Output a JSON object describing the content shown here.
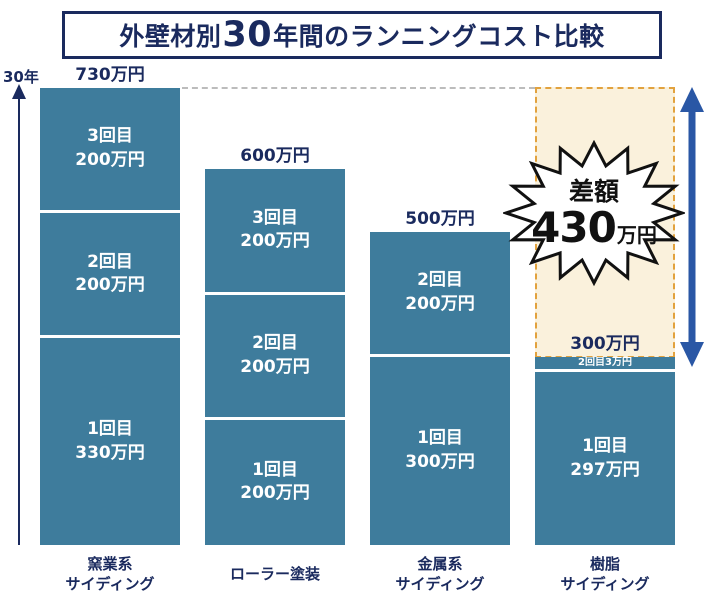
{
  "title": {
    "pre": "外壁材別",
    "big": "30",
    "post": "年間のランニングコスト比較"
  },
  "colors": {
    "bar": "#3e7c9c",
    "navy": "#1a2a5e",
    "cream_zone": "#faf1dc",
    "dashed_orange": "#e2a23e",
    "arrow_blue": "#2a57a5",
    "segment_text": "#ffffff"
  },
  "chart_data": {
    "type": "bar",
    "stacked": true,
    "unit": "万円",
    "title": "外壁材別30年間のランニングコスト比較",
    "ylabel": "30年",
    "ylim": [
      0,
      730
    ],
    "legend": false,
    "categories": [
      "窯業系サイディング",
      "ローラー塗装",
      "金属系サイディング",
      "樹脂サイディング"
    ],
    "bars": [
      {
        "category": "窯業系サイディング",
        "category_lines": [
          "窯業系",
          "サイディング"
        ],
        "total": 730,
        "total_label": "730万円",
        "segments": [
          {
            "name": "3回目",
            "value": 200,
            "label_lines": [
              "3回目",
              "200万円"
            ]
          },
          {
            "name": "2回目",
            "value": 200,
            "label_lines": [
              "2回目",
              "200万円"
            ]
          },
          {
            "name": "1回目",
            "value": 330,
            "label_lines": [
              "1回目",
              "330万円"
            ]
          }
        ]
      },
      {
        "category": "ローラー塗装",
        "category_lines": [
          "ローラー塗装"
        ],
        "total": 600,
        "total_label": "600万円",
        "segments": [
          {
            "name": "3回目",
            "value": 200,
            "label_lines": [
              "3回目",
              "200万円"
            ]
          },
          {
            "name": "2回目",
            "value": 200,
            "label_lines": [
              "2回目",
              "200万円"
            ]
          },
          {
            "name": "1回目",
            "value": 200,
            "label_lines": [
              "1回目",
              "200万円"
            ]
          }
        ]
      },
      {
        "category": "金属系サイディング",
        "category_lines": [
          "金属系",
          "サイディング"
        ],
        "total": 500,
        "total_label": "500万円",
        "segments": [
          {
            "name": "2回目",
            "value": 200,
            "label_lines": [
              "2回目",
              "200万円"
            ]
          },
          {
            "name": "1回目",
            "value": 300,
            "label_lines": [
              "1回目",
              "300万円"
            ]
          }
        ]
      },
      {
        "category": "樹脂サイディング",
        "category_lines": [
          "樹脂",
          "サイディング"
        ],
        "total": 300,
        "total_label": "300万円",
        "segments": [
          {
            "name": "2回目",
            "value": 3,
            "label_lines": [
              "2回目3万円"
            ]
          },
          {
            "name": "1回目",
            "value": 297,
            "label_lines": [
              "1回目",
              "297万円"
            ]
          }
        ]
      }
    ],
    "difference": {
      "label": "差額",
      "value": "430",
      "unit": "万円"
    }
  }
}
